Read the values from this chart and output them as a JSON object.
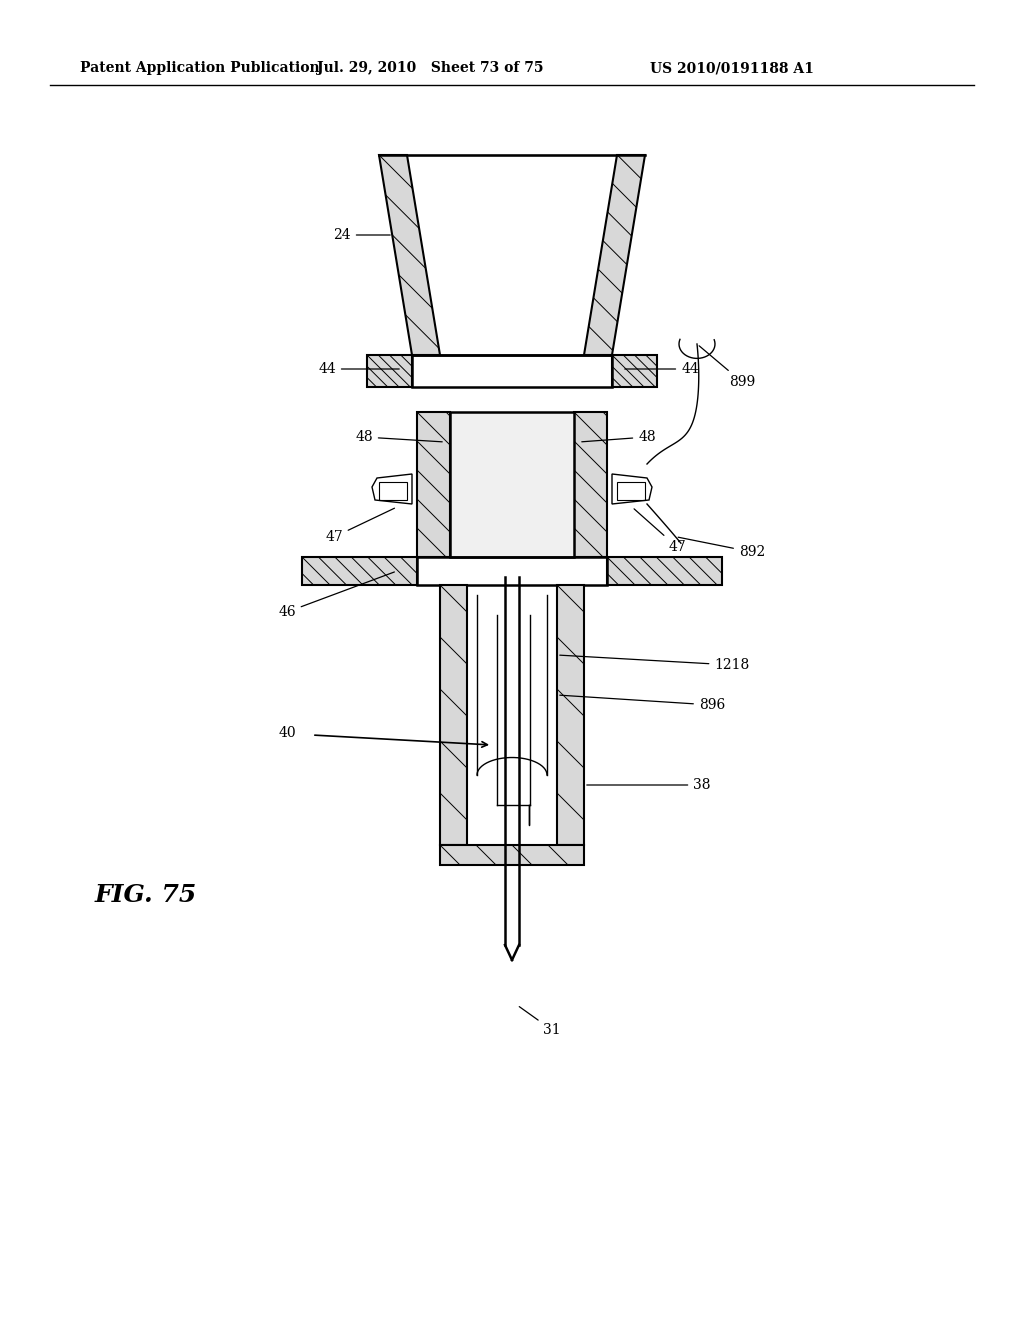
{
  "header_left": "Patent Application Publication",
  "header_mid": "Jul. 29, 2010   Sheet 73 of 75",
  "header_right": "US 2010/0191188 A1",
  "fig_label": "FIG. 75",
  "background_color": "#ffffff",
  "line_color": "#000000"
}
